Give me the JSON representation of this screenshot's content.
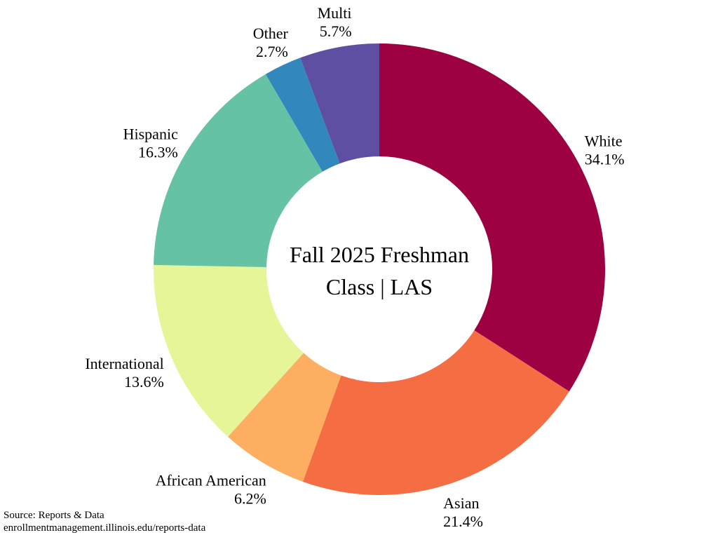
{
  "chart_data": {
    "type": "pie",
    "style": "donut",
    "title_lines": [
      "Fall 2025 Freshman",
      "Class | LAS"
    ],
    "start": "top",
    "direction": "clockwise",
    "slices": [
      {
        "label": "White",
        "value": 34.1,
        "value_label": "34.1%",
        "color": "#9e0142"
      },
      {
        "label": "Asian",
        "value": 21.4,
        "value_label": "21.4%",
        "color": "#f46d43"
      },
      {
        "label": "African American",
        "value": 6.2,
        "value_label": "6.2%",
        "color": "#fdae61"
      },
      {
        "label": "International",
        "value": 13.6,
        "value_label": "13.6%",
        "color": "#e6f598"
      },
      {
        "label": "Hispanic",
        "value": 16.3,
        "value_label": "16.3%",
        "color": "#66c2a5"
      },
      {
        "label": "Other",
        "value": 2.7,
        "value_label": "2.7%",
        "color": "#3288bd"
      },
      {
        "label": "Multi",
        "value": 5.7,
        "value_label": "5.7%",
        "color": "#5e4fa2"
      }
    ]
  },
  "source": {
    "line1": "Source: Reports & Data",
    "line2": "enrollmentmanagement.illinois.edu/reports-data"
  }
}
